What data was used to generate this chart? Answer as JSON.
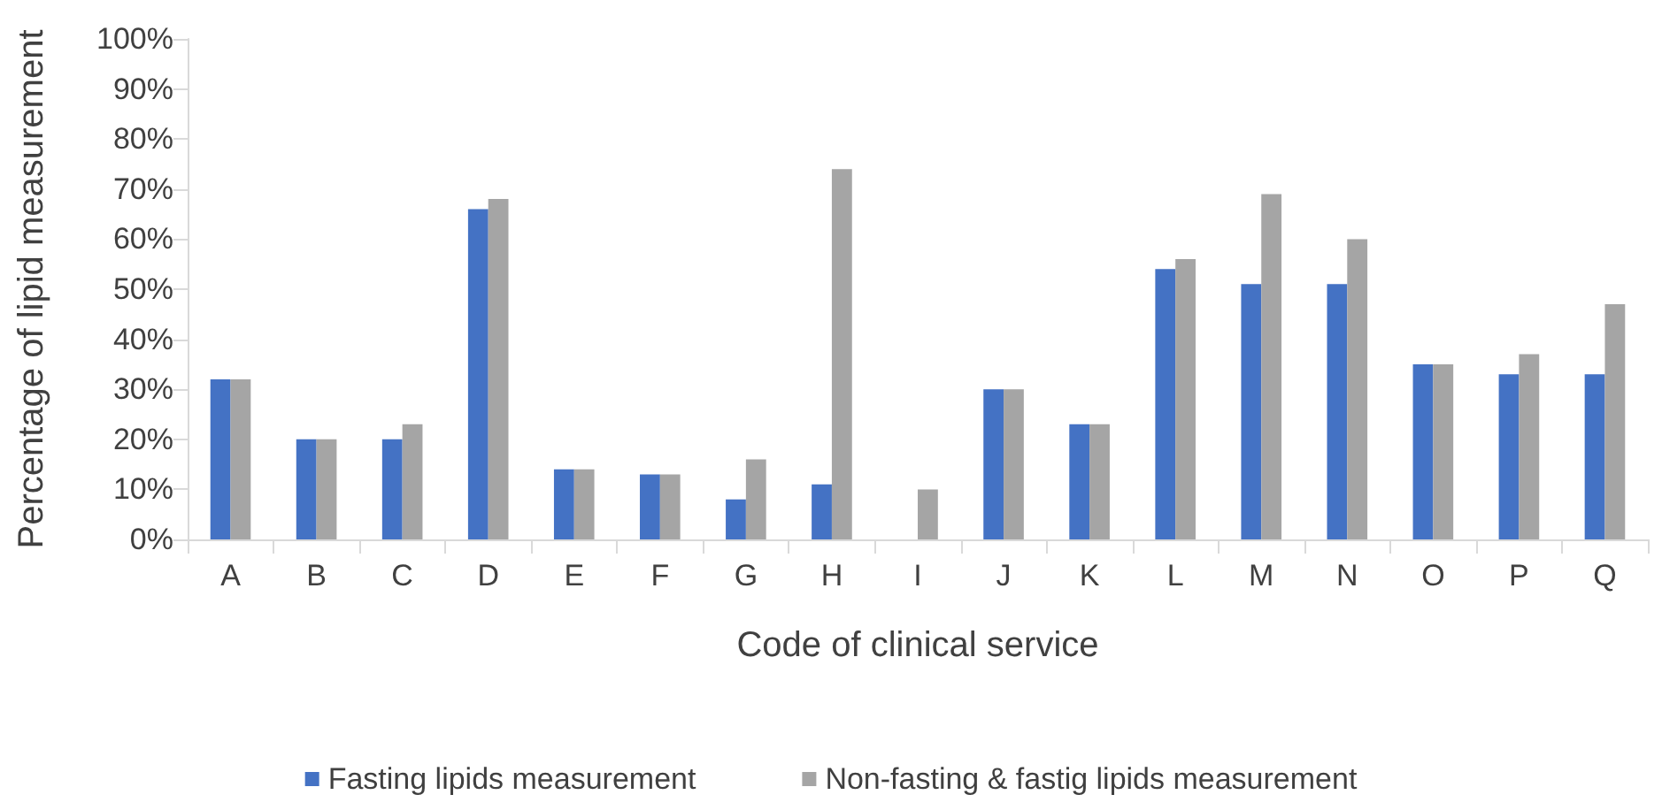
{
  "chart_data": {
    "type": "bar",
    "xlabel": "Code of clinical service",
    "ylabel": "Percentage of lipid measurement",
    "categories": [
      "A",
      "B",
      "C",
      "D",
      "E",
      "F",
      "G",
      "H",
      "I",
      "J",
      "K",
      "L",
      "M",
      "N",
      "O",
      "P",
      "Q"
    ],
    "series": [
      {
        "name": "Fasting lipids measurement",
        "color": "#4472c4",
        "values": [
          32,
          20,
          20,
          66,
          14,
          13,
          8,
          11,
          0,
          30,
          23,
          54,
          51,
          51,
          35,
          33,
          33
        ]
      },
      {
        "name": "Non-fasting & fastig lipids measurement",
        "color": "#a5a5a5",
        "values": [
          32,
          20,
          23,
          68,
          14,
          13,
          16,
          74,
          10,
          30,
          23,
          56,
          69,
          60,
          35,
          37,
          47
        ]
      }
    ],
    "ylim": [
      0,
      100
    ],
    "yticks": [
      {
        "value": 0,
        "label": "0%"
      },
      {
        "value": 10,
        "label": "10%"
      },
      {
        "value": 20,
        "label": "20%"
      },
      {
        "value": 30,
        "label": "30%"
      },
      {
        "value": 40,
        "label": "40%"
      },
      {
        "value": 50,
        "label": "50%"
      },
      {
        "value": 60,
        "label": "60%"
      },
      {
        "value": 70,
        "label": "70%"
      },
      {
        "value": 80,
        "label": "80%"
      },
      {
        "value": 90,
        "label": "90%"
      },
      {
        "value": 100,
        "label": "100%"
      }
    ],
    "grid": false,
    "legend": "bottom"
  }
}
